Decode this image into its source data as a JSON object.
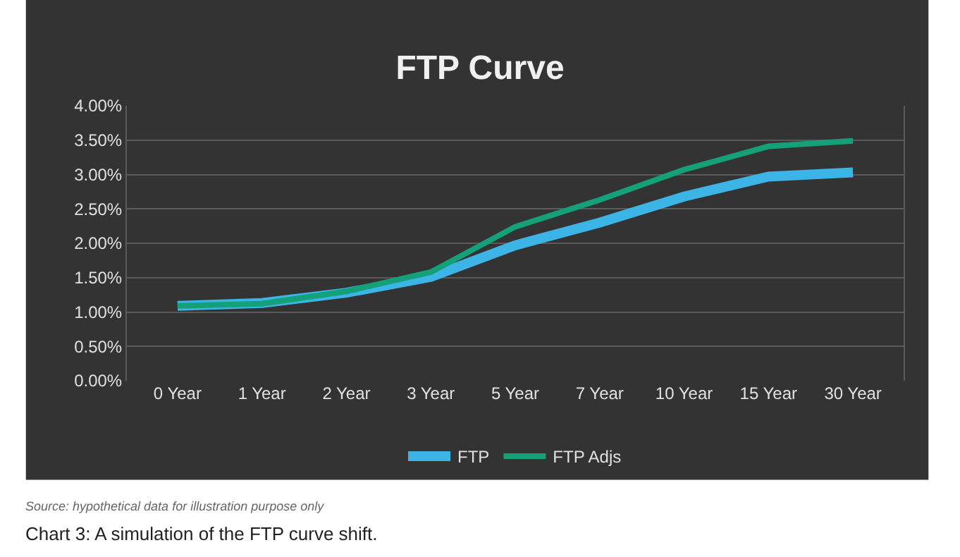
{
  "chart_data": {
    "type": "line",
    "title": "FTP Curve",
    "categories": [
      "0 Year",
      "1 Year",
      "2 Year",
      "3 Year",
      "5 Year",
      "7 Year",
      "10 Year",
      "15 Year",
      "30 Year"
    ],
    "series": [
      {
        "name": "FTP",
        "color": "#3cb4e6",
        "values": [
          1.09,
          1.13,
          1.28,
          1.51,
          1.97,
          2.3,
          2.68,
          2.97,
          3.03
        ]
      },
      {
        "name": "FTP Adjs",
        "color": "#14a078",
        "values": [
          1.09,
          1.12,
          1.3,
          1.58,
          2.24,
          2.63,
          3.07,
          3.41,
          3.49
        ]
      }
    ],
    "ylim": [
      0,
      4
    ],
    "yticks": [
      {
        "value": 0,
        "label": "0.00%"
      },
      {
        "value": 0.5,
        "label": "0.50%"
      },
      {
        "value": 1,
        "label": "1.00%"
      },
      {
        "value": 1.5,
        "label": "1.50%"
      },
      {
        "value": 2,
        "label": "2.00%"
      },
      {
        "value": 2.5,
        "label": "2.50%"
      },
      {
        "value": 3,
        "label": "3.00%"
      },
      {
        "value": 3.5,
        "label": "3.50%"
      },
      {
        "value": 4,
        "label": "4.00%"
      }
    ],
    "grid": "y",
    "legend": "bottom",
    "marker": "none",
    "line_style": "solid",
    "annotations": [
      "Source: hypothetical data for illustration purpose only",
      "Chart 3: A simulation of the FTP curve shift."
    ]
  }
}
